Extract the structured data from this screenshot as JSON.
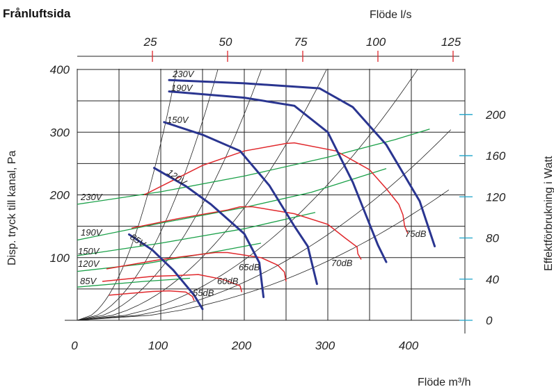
{
  "title": "Frånluftsida",
  "chart_data": {
    "type": "line",
    "title": "Frånluftsida",
    "xlabel": "Flöde m³/h",
    "x2label": "Flöde l/s",
    "ylabel": "Disp. tryck till kanal, Pa",
    "y2label": "Effektförbrukning i Watt",
    "xlim": [
      0,
      450
    ],
    "ylim": [
      0,
      400
    ],
    "x2lim": [
      0,
      125
    ],
    "y2lim": [
      0,
      220
    ],
    "xticks": [
      0,
      100,
      200,
      300,
      400
    ],
    "xtick_labels": [
      "0",
      "100",
      "200",
      "300",
      "400"
    ],
    "x2ticks": [
      25,
      50,
      75,
      100,
      125
    ],
    "x2tick_labels": [
      "25",
      "50",
      "75",
      "100",
      "125"
    ],
    "yticks": [
      100,
      200,
      300,
      400
    ],
    "ytick_labels": [
      "100",
      "200",
      "300",
      "400"
    ],
    "y2ticks": [
      0,
      40,
      80,
      120,
      160,
      200
    ],
    "y2tick_labels": [
      "0",
      "40",
      "80",
      "120",
      "160",
      "200"
    ],
    "grid": true,
    "fan_curves": [
      {
        "name": "230V",
        "color": "#2a3590",
        "points": [
          [
            110,
            383
          ],
          [
            200,
            378
          ],
          [
            290,
            370
          ],
          [
            330,
            340
          ],
          [
            370,
            280
          ],
          [
            410,
            190
          ],
          [
            428,
            118
          ]
        ]
      },
      {
        "name": "190V",
        "color": "#2a3590",
        "points": [
          [
            110,
            365
          ],
          [
            200,
            355
          ],
          [
            260,
            342
          ],
          [
            300,
            300
          ],
          [
            330,
            220
          ],
          [
            360,
            120
          ],
          [
            370,
            93
          ]
        ]
      },
      {
        "name": "150V",
        "color": "#2a3590",
        "points": [
          [
            104,
            316
          ],
          [
            150,
            296
          ],
          [
            195,
            270
          ],
          [
            230,
            215
          ],
          [
            260,
            150
          ],
          [
            276,
            118
          ],
          [
            287,
            58
          ]
        ]
      },
      {
        "name": "120V",
        "color": "#2a3590",
        "points": [
          [
            92,
            243
          ],
          [
            130,
            214
          ],
          [
            160,
            185
          ],
          [
            200,
            138
          ],
          [
            218,
            92
          ],
          [
            223,
            37
          ]
        ]
      },
      {
        "name": "85V",
        "color": "#2a3590",
        "points": [
          [
            62,
            137
          ],
          [
            90,
            112
          ],
          [
            115,
            80
          ],
          [
            140,
            40
          ],
          [
            150,
            18
          ]
        ]
      }
    ],
    "sound_curves": [
      {
        "name": "75dB",
        "color": "#e0272b",
        "points": [
          [
            80,
            200
          ],
          [
            150,
            247
          ],
          [
            200,
            270
          ],
          [
            250,
            282
          ],
          [
            260,
            283
          ],
          [
            310,
            270
          ],
          [
            350,
            240
          ],
          [
            370,
            210
          ],
          [
            385,
            185
          ],
          [
            390,
            168
          ],
          [
            392,
            150
          ],
          [
            396,
            138
          ]
        ]
      },
      {
        "name": "70dB",
        "color": "#e0272b",
        "points": [
          [
            65,
            147
          ],
          [
            120,
            162
          ],
          [
            180,
            176
          ],
          [
            195,
            181
          ],
          [
            210,
            181
          ],
          [
            260,
            170
          ],
          [
            300,
            153
          ],
          [
            320,
            132
          ],
          [
            335,
            117
          ],
          [
            336,
            106
          ],
          [
            340,
            97
          ]
        ]
      },
      {
        "name": "65dB",
        "color": "#e0272b",
        "points": [
          [
            35,
            82
          ],
          [
            100,
            97
          ],
          [
            165,
            108
          ],
          [
            180,
            108
          ],
          [
            220,
            100
          ],
          [
            240,
            88
          ],
          [
            248,
            77
          ],
          [
            250,
            62
          ]
        ]
      },
      {
        "name": "60dB",
        "color": "#e0272b",
        "points": [
          [
            30,
            62
          ],
          [
            90,
            70
          ],
          [
            130,
            72
          ],
          [
            145,
            73
          ],
          [
            175,
            65
          ],
          [
            195,
            55
          ],
          [
            197,
            45
          ]
        ]
      },
      {
        "name": "55dB",
        "color": "#e0272b",
        "points": [
          [
            38,
            40
          ],
          [
            90,
            46
          ],
          [
            110,
            47
          ],
          [
            130,
            45
          ],
          [
            138,
            38
          ],
          [
            140,
            31
          ]
        ]
      }
    ],
    "power_curves": [
      {
        "name": "230V",
        "color": "#1aa048",
        "points": [
          [
            0,
            185
          ],
          [
            100,
            205
          ],
          [
            200,
            230
          ],
          [
            300,
            260
          ],
          [
            380,
            288
          ],
          [
            422,
            305
          ]
        ]
      },
      {
        "name": "190V",
        "color": "#1aa048",
        "points": [
          [
            0,
            128
          ],
          [
            100,
            155
          ],
          [
            200,
            180
          ],
          [
            280,
            204
          ],
          [
            370,
            242
          ]
        ]
      },
      {
        "name": "150V",
        "color": "#1aa048",
        "points": [
          [
            0,
            103
          ],
          [
            100,
            123
          ],
          [
            200,
            146
          ],
          [
            285,
            172
          ]
        ]
      },
      {
        "name": "120V",
        "color": "#1aa048",
        "points": [
          [
            0,
            78
          ],
          [
            80,
            90
          ],
          [
            160,
            108
          ],
          [
            220,
            123
          ]
        ]
      },
      {
        "name": "85V",
        "color": "#1aa048",
        "points": [
          [
            0,
            53
          ],
          [
            80,
            62
          ],
          [
            135,
            67
          ]
        ]
      }
    ],
    "annotations": [
      "230V",
      "190V",
      "150V",
      "120V",
      "85V",
      "230V",
      "190V",
      "150V",
      "120V",
      "85V",
      "75dB",
      "70dB",
      "65dB",
      "60dB",
      "55dB"
    ]
  }
}
